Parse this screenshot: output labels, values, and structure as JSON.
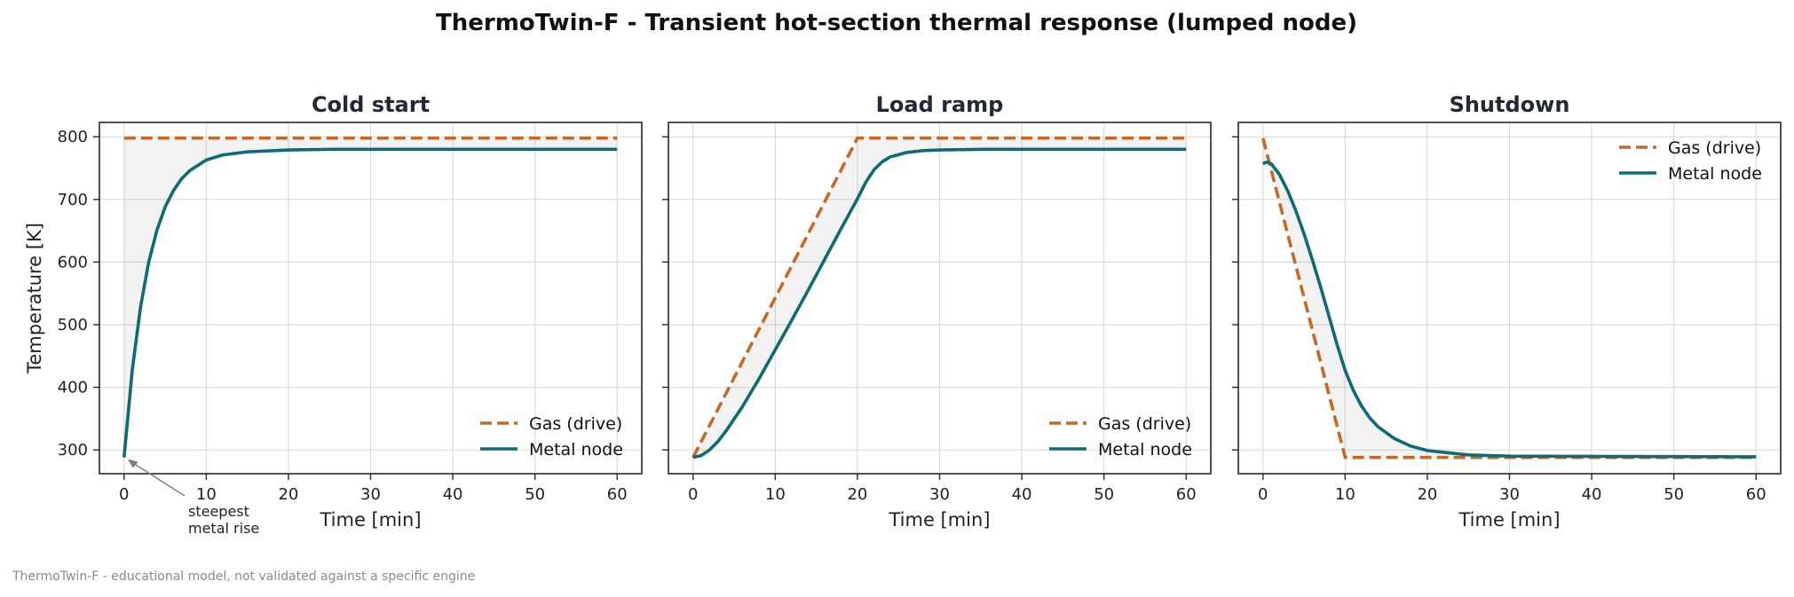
{
  "figure": {
    "title": "ThermoTwin-F  -  Transient hot-section thermal response (lumped node)",
    "footer": "ThermoTwin-F - educational model, not validated against a specific engine"
  },
  "chart_data": [
    {
      "type": "line",
      "title": "Cold start",
      "xlabel": "Time [min]",
      "ylabel": "Temperature [K]",
      "xlim": [
        -3,
        63
      ],
      "ylim": [
        262,
        823
      ],
      "xticks": [
        0,
        10,
        20,
        30,
        40,
        50,
        60
      ],
      "yticks": [
        300,
        400,
        500,
        600,
        700,
        800
      ],
      "grid": true,
      "legend": "lower-right",
      "fill_between_series": true,
      "annotation": {
        "text_lines": [
          "steepest",
          "metal rise"
        ],
        "x": 0,
        "y": 288
      },
      "series": [
        {
          "name": "Gas (drive)",
          "style": "dashed",
          "color": "#c46a28",
          "x": [
            0,
            60
          ],
          "y": [
            798,
            798
          ]
        },
        {
          "name": "Metal node",
          "style": "solid",
          "color": "#0e6a73",
          "x": [
            0,
            1,
            2,
            3,
            4,
            5,
            6,
            7,
            8,
            10,
            12,
            15,
            20,
            25,
            30,
            40,
            60
          ],
          "y": [
            288,
            428,
            528,
            600,
            651,
            688,
            714,
            733,
            746,
            763,
            771,
            776,
            779,
            780,
            780,
            780,
            780
          ]
        }
      ]
    },
    {
      "type": "line",
      "title": "Load ramp",
      "xlabel": "Time [min]",
      "ylabel": "",
      "xlim": [
        -3,
        63
      ],
      "ylim": [
        262,
        823
      ],
      "xticks": [
        0,
        10,
        20,
        30,
        40,
        50,
        60
      ],
      "yticks": [
        300,
        400,
        500,
        600,
        700,
        800
      ],
      "grid": true,
      "legend": "lower-right",
      "fill_between_series": true,
      "series": [
        {
          "name": "Gas (drive)",
          "style": "dashed",
          "color": "#c46a28",
          "x": [
            0,
            20,
            60
          ],
          "y": [
            288,
            798,
            798
          ]
        },
        {
          "name": "Metal node",
          "style": "solid",
          "color": "#0e6a73",
          "x": [
            0,
            1,
            2,
            3,
            4,
            6,
            8,
            10,
            12,
            14,
            16,
            18,
            20,
            21,
            22,
            23,
            24,
            26,
            28,
            30,
            35,
            40,
            60
          ],
          "y": [
            288,
            291,
            300,
            313,
            330,
            369,
            413,
            460,
            507,
            555,
            604,
            653,
            701,
            727,
            747,
            760,
            768,
            775,
            778,
            779,
            780,
            780,
            780
          ]
        }
      ]
    },
    {
      "type": "line",
      "title": "Shutdown",
      "xlabel": "Time [min]",
      "ylabel": "",
      "xlim": [
        -3,
        63
      ],
      "ylim": [
        262,
        823
      ],
      "xticks": [
        0,
        10,
        20,
        30,
        40,
        50,
        60
      ],
      "yticks": [
        300,
        400,
        500,
        600,
        700,
        800
      ],
      "grid": true,
      "legend": "upper-right",
      "fill_between_series": true,
      "series": [
        {
          "name": "Gas (drive)",
          "style": "dashed",
          "color": "#c46a28",
          "x": [
            0,
            10,
            60
          ],
          "y": [
            798,
            288,
            288
          ]
        },
        {
          "name": "Metal node",
          "style": "solid",
          "color": "#0e6a73",
          "x": [
            0,
            0.5,
            1,
            2,
            3,
            4,
            5,
            6,
            7,
            8,
            9,
            10,
            11,
            12,
            13,
            14,
            16,
            18,
            20,
            25,
            30,
            60
          ],
          "y": [
            757,
            760,
            757,
            740,
            714,
            682,
            645,
            604,
            561,
            515,
            469,
            427,
            395,
            370,
            351,
            337,
            318,
            306,
            299,
            292,
            290,
            289
          ]
        }
      ]
    }
  ]
}
